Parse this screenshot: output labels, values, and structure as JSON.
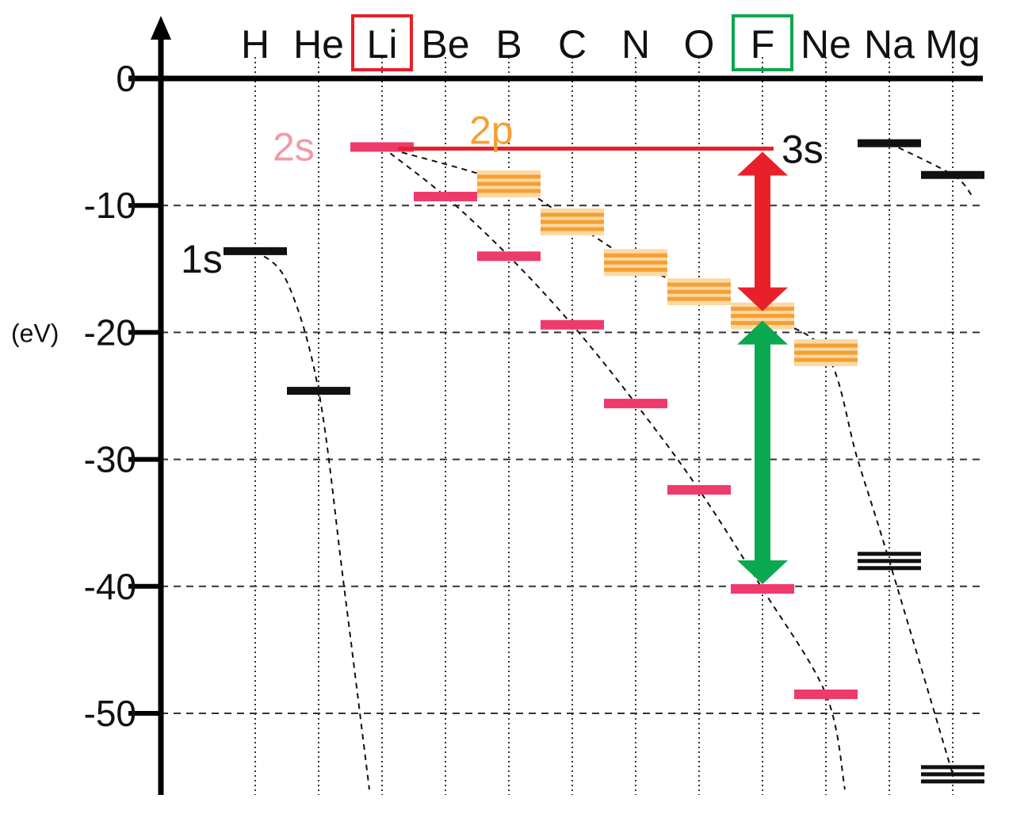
{
  "chart_data": {
    "type": "energy-level-diagram",
    "elements": [
      "H",
      "He",
      "Li",
      "Be",
      "B",
      "C",
      "N",
      "O",
      "F",
      "Ne",
      "Na",
      "Mg"
    ],
    "highlighted_elements": [
      {
        "element": "Li",
        "color": "#e8202a"
      },
      {
        "element": "F",
        "color": "#0aa84f"
      }
    ],
    "ylabel": "(eV)",
    "yticks": [
      0,
      -10,
      -20,
      -30,
      -40,
      -50
    ],
    "ylim": [
      -56,
      3
    ],
    "grid": "dotted-vertical, dashed-horizontal",
    "orbital_labels": {
      "s1": "1s",
      "s2": "2s",
      "p2": "2p",
      "s3": "3s"
    },
    "series": [
      {
        "name": "1s",
        "color": "#111111",
        "levels": [
          {
            "element": "H",
            "energy": -13.6,
            "lines": 1
          },
          {
            "element": "He",
            "energy": -24.6,
            "lines": 1
          }
        ]
      },
      {
        "name": "2s",
        "color": "#ee3b6c",
        "levels": [
          {
            "element": "Li",
            "energy": -5.4,
            "lines": 1
          },
          {
            "element": "Be",
            "energy": -9.3,
            "lines": 1
          },
          {
            "element": "B",
            "energy": -14.0,
            "lines": 1
          },
          {
            "element": "C",
            "energy": -19.4,
            "lines": 1
          },
          {
            "element": "N",
            "energy": -25.6,
            "lines": 1
          },
          {
            "element": "O",
            "energy": -32.4,
            "lines": 1
          },
          {
            "element": "F",
            "energy": -40.2,
            "lines": 1
          },
          {
            "element": "Ne",
            "energy": -48.5,
            "lines": 1
          }
        ]
      },
      {
        "name": "2p",
        "color": "#f5a033",
        "levels": [
          {
            "element": "B",
            "energy": -8.3,
            "lines": 3
          },
          {
            "element": "C",
            "energy": -11.3,
            "lines": 3
          },
          {
            "element": "N",
            "energy": -14.5,
            "lines": 3
          },
          {
            "element": "O",
            "energy": -16.8,
            "lines": 3
          },
          {
            "element": "F",
            "energy": -18.7,
            "lines": 3
          },
          {
            "element": "Ne",
            "energy": -21.6,
            "lines": 3
          }
        ]
      },
      {
        "name": "3s",
        "color": "#111111",
        "levels": [
          {
            "element": "Na",
            "energy": -5.1,
            "lines": 1
          },
          {
            "element": "Mg",
            "energy": -7.6,
            "lines": 1
          }
        ]
      },
      {
        "name": "2p (Na, Mg)",
        "color": "#111111",
        "levels": [
          {
            "element": "Na",
            "energy": -38.0,
            "lines": 3
          },
          {
            "element": "Mg",
            "energy": -54.8,
            "lines": 3
          }
        ]
      }
    ],
    "trend_curves": [
      {
        "color": "#111111",
        "points": [
          [
            1,
            -13.6
          ],
          [
            1.5,
            -16
          ],
          [
            2,
            -24.6
          ],
          [
            2.4,
            -40
          ],
          [
            2.8,
            -56
          ]
        ]
      },
      {
        "color": "#111111",
        "points": [
          [
            3,
            -5.4
          ],
          [
            4,
            -9.3
          ],
          [
            5,
            -14.0
          ],
          [
            6,
            -19.4
          ],
          [
            7,
            -25.6
          ],
          [
            8,
            -32.4
          ],
          [
            9,
            -40.2
          ],
          [
            10,
            -48.5
          ],
          [
            10.3,
            -56
          ]
        ]
      },
      {
        "color": "#111111",
        "points": [
          [
            3,
            -5.4
          ],
          [
            5,
            -8.3
          ],
          [
            6,
            -11.3
          ],
          [
            7,
            -14.5
          ],
          [
            8,
            -16.8
          ],
          [
            9,
            -18.7
          ],
          [
            10,
            -21.6
          ],
          [
            10.5,
            -30
          ],
          [
            11,
            -38
          ],
          [
            12,
            -54.8
          ]
        ]
      },
      {
        "color": "#111111",
        "points": [
          [
            11,
            -5.1
          ],
          [
            12,
            -7.6
          ],
          [
            12.3,
            -9.2
          ]
        ]
      }
    ],
    "annotations": [
      {
        "type": "reference-line",
        "color": "#e8202a",
        "from_element": "Li",
        "to_element": "F",
        "energy": -5.4
      },
      {
        "type": "double-arrow",
        "color": "#e8202a",
        "element": "F",
        "from": -5.4,
        "to": -18.7
      },
      {
        "type": "double-arrow",
        "color": "#0aa84f",
        "element": "F",
        "from": -18.7,
        "to": -40.2
      }
    ]
  }
}
